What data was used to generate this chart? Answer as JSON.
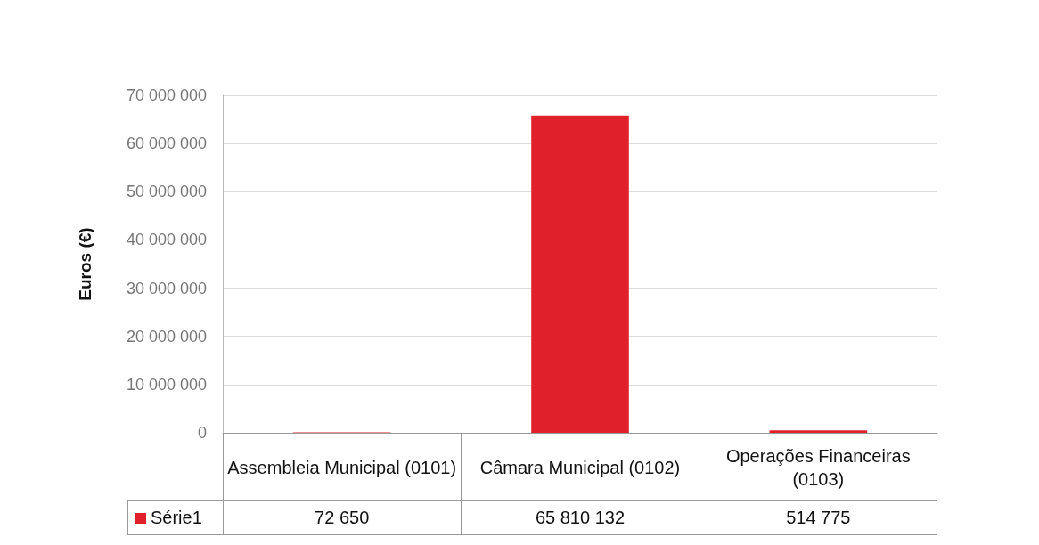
{
  "chart_data": {
    "type": "bar",
    "ylabel": "Euros (€)",
    "categories": [
      "Assembleia Municipal (0101)",
      "Câmara Municipal (0102)",
      "Operações Financeiras (0103)"
    ],
    "series": [
      {
        "name": "Série1",
        "color": "#e0202a",
        "values": [
          72650,
          65810132,
          514775
        ],
        "value_labels": [
          "72 650",
          "65 810 132",
          "514 775"
        ]
      }
    ],
    "ylim": [
      0,
      70000000
    ],
    "yticks": [
      {
        "value": 0,
        "label": "0"
      },
      {
        "value": 10000000,
        "label": "10 000 000"
      },
      {
        "value": 20000000,
        "label": "20 000 000"
      },
      {
        "value": 30000000,
        "label": "30 000 000"
      },
      {
        "value": 40000000,
        "label": "40 000 000"
      },
      {
        "value": 50000000,
        "label": "50 000 000"
      },
      {
        "value": 60000000,
        "label": "60 000 000"
      },
      {
        "value": 70000000,
        "label": "70 000 000"
      }
    ],
    "grid": "y",
    "legend": "bottom"
  }
}
